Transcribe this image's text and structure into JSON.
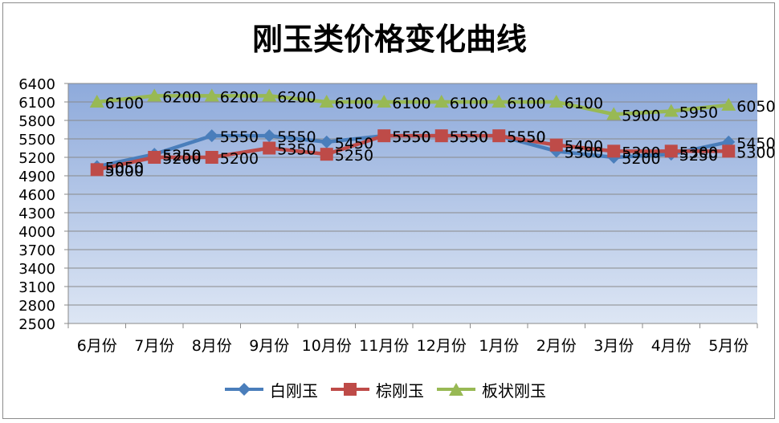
{
  "chart_data": {
    "type": "line",
    "title": "刚玉类价格变化曲线",
    "categories": [
      "6月份",
      "7月份",
      "8月份",
      "9月份",
      "10月份",
      "11月份",
      "12月份",
      "1月份",
      "2月份",
      "3月份",
      "4月份",
      "5月份"
    ],
    "ylim": [
      2500,
      6400
    ],
    "yticks": [
      2500,
      2800,
      3100,
      3400,
      3700,
      4000,
      4300,
      4600,
      4900,
      5200,
      5500,
      5800,
      6100,
      6400
    ],
    "grid": true,
    "legend_position": "bottom",
    "series": [
      {
        "name": "白刚玉",
        "color": "#4a7ebb",
        "marker": "diamond",
        "values": [
          5050,
          5250,
          5550,
          5550,
          5450,
          5550,
          5550,
          5550,
          5300,
          5200,
          5250,
          5450
        ]
      },
      {
        "name": "棕刚玉",
        "color": "#be4b48",
        "marker": "square",
        "values": [
          5000,
          5200,
          5200,
          5350,
          5250,
          5550,
          5550,
          5550,
          5400,
          5300,
          5300,
          5300
        ]
      },
      {
        "name": "板状刚玉",
        "color": "#98b954",
        "marker": "triangle",
        "values": [
          6100,
          6200,
          6200,
          6200,
          6100,
          6100,
          6100,
          6100,
          6100,
          5900,
          5950,
          6050
        ]
      }
    ]
  }
}
